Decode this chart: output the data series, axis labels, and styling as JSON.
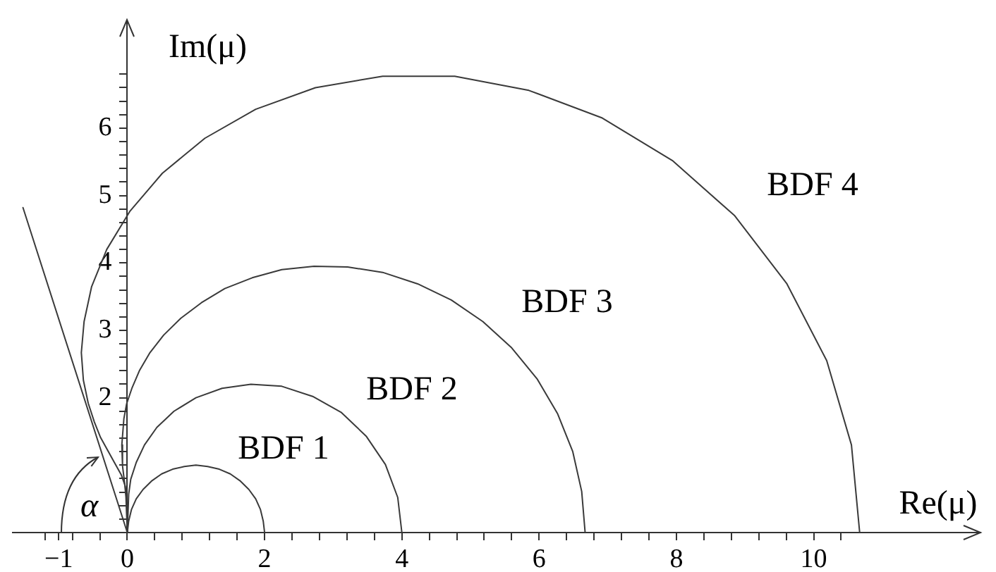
{
  "chart_data": {
    "type": "line",
    "xlabel": "Re(μ)",
    "ylabel": "Im(μ)",
    "annotations": [
      "α"
    ],
    "xlim": [
      -1.67,
      12.43
    ],
    "ylim": [
      0,
      7.6
    ],
    "xticks": [
      {
        "value": -1.2,
        "label": null
      },
      {
        "value": -1,
        "label": "−1"
      },
      {
        "value": -0.8,
        "label": null
      },
      {
        "value": -0.4,
        "label": null
      },
      0,
      {
        "value": 0.4,
        "label": null
      },
      {
        "value": 0.8,
        "label": null
      },
      {
        "value": 1.2,
        "label": null
      },
      {
        "value": 1.6,
        "label": null
      },
      2,
      {
        "value": 2.4,
        "label": null
      },
      {
        "value": 2.8,
        "label": null
      },
      {
        "value": 3.2,
        "label": null
      },
      {
        "value": 3.6,
        "label": null
      },
      4,
      {
        "value": 4.4,
        "label": null
      },
      {
        "value": 4.8,
        "label": null
      },
      {
        "value": 5.2,
        "label": null
      },
      {
        "value": 5.6,
        "label": null
      },
      6,
      {
        "value": 6.4,
        "label": null
      },
      {
        "value": 6.8,
        "label": null
      },
      {
        "value": 7.2,
        "label": null
      },
      {
        "value": 7.6,
        "label": null
      },
      8,
      {
        "value": 8.4,
        "label": null
      },
      {
        "value": 8.8,
        "label": null
      },
      {
        "value": 9.2,
        "label": null
      },
      {
        "value": 9.6,
        "label": null
      },
      10,
      {
        "value": 10.4,
        "label": null
      }
    ],
    "yticks": [
      {
        "value": 0.2,
        "label": null
      },
      {
        "value": 0.4,
        "label": null
      },
      {
        "value": 0.6,
        "label": null
      },
      {
        "value": 0.8,
        "label": null
      },
      {
        "value": 1,
        "label": null
      },
      {
        "value": 1.2,
        "label": null
      },
      {
        "value": 1.4,
        "label": null
      },
      {
        "value": 1.6,
        "label": null
      },
      {
        "value": 1.8,
        "label": null
      },
      2,
      {
        "value": 2.2,
        "label": null
      },
      {
        "value": 2.4,
        "label": null
      },
      {
        "value": 2.6,
        "label": null
      },
      {
        "value": 2.8,
        "label": null
      },
      3,
      {
        "value": 3.2,
        "label": null
      },
      {
        "value": 3.4,
        "label": null
      },
      {
        "value": 3.6,
        "label": null
      },
      {
        "value": 3.8,
        "label": null
      },
      4,
      {
        "value": 4.2,
        "label": null
      },
      {
        "value": 4.4,
        "label": null
      },
      {
        "value": 4.6,
        "label": null
      },
      {
        "value": 4.8,
        "label": null
      },
      5,
      {
        "value": 5.2,
        "label": null
      },
      {
        "value": 5.4,
        "label": null
      },
      {
        "value": 5.6,
        "label": null
      },
      {
        "value": 5.8,
        "label": null
      },
      6,
      {
        "value": 6.2,
        "label": null
      },
      {
        "value": 6.4,
        "label": null
      },
      {
        "value": 6.6,
        "label": null
      },
      {
        "value": 6.8,
        "label": null
      }
    ],
    "series": [
      {
        "name": "BDF 1",
        "color": "#3a3a3a",
        "x": [
          2,
          1.98,
          1.94,
          1.87,
          1.77,
          1.64,
          1.5,
          1.34,
          1.17,
          1,
          0.83,
          0.66,
          0.5,
          0.36,
          0.23,
          0.13,
          0.06,
          0.02,
          0
        ],
        "values": [
          0,
          0.17,
          0.34,
          0.5,
          0.64,
          0.77,
          0.87,
          0.94,
          0.98,
          1,
          0.98,
          0.94,
          0.87,
          0.77,
          0.64,
          0.5,
          0.34,
          0.17,
          0
        ]
      },
      {
        "name": "BDF 2",
        "color": "#3a3a3a",
        "x": [
          4,
          3.94,
          3.76,
          3.48,
          3.12,
          2.7,
          2.25,
          1.8,
          1.38,
          1,
          0.68,
          0.43,
          0.25,
          0.13,
          0.05,
          0.02,
          0
        ],
        "values": [
          0,
          0.52,
          1.01,
          1.43,
          1.78,
          2.02,
          2.17,
          2.2,
          2.14,
          2,
          1.8,
          1.56,
          1.3,
          1.04,
          0.79,
          0.57,
          0
        ]
      },
      {
        "name": "BDF 3",
        "color": "#3a3a3a",
        "x": [
          6.67,
          6.62,
          6.49,
          6.27,
          5.97,
          5.6,
          5.18,
          4.72,
          4.23,
          3.72,
          3.21,
          2.72,
          2.25,
          1.82,
          1.42,
          1.08,
          0.78,
          0.53,
          0.33,
          0.18,
          0.07,
          -0.01,
          -0.05,
          -0.08,
          -0.07,
          -0.04,
          -0.02,
          0
        ],
        "values": [
          0,
          0.61,
          1.2,
          1.76,
          2.28,
          2.74,
          3.13,
          3.45,
          3.69,
          3.86,
          3.94,
          3.95,
          3.9,
          3.78,
          3.62,
          3.41,
          3.18,
          2.93,
          2.67,
          2.41,
          2.15,
          1.91,
          1.69,
          1.3,
          0.99,
          0.74,
          0.53,
          0
        ]
      },
      {
        "name": "BDF 4",
        "color": "#3a3a3a",
        "x": [
          10.67,
          10.55,
          10.19,
          9.61,
          8.85,
          7.94,
          6.92,
          5.85,
          4.77,
          3.72,
          2.74,
          1.87,
          1.13,
          0.51,
          0.04,
          -0.3,
          -0.52,
          -0.63,
          -0.67,
          -0.64,
          -0.57,
          -0.48,
          -0.39,
          -0.21,
          -0.09,
          -0.03,
          -0.01,
          0
        ],
        "values": [
          0,
          1.3,
          2.55,
          3.69,
          4.7,
          5.52,
          6.15,
          6.56,
          6.77,
          6.77,
          6.6,
          6.28,
          5.85,
          5.33,
          4.77,
          4.2,
          3.65,
          3.13,
          2.67,
          2.26,
          1.92,
          1.64,
          1.41,
          1.08,
          0.86,
          0.69,
          0.52,
          0
        ]
      },
      {
        "color": "#3a3a3a",
        "x": [
          0,
          -1.52
        ],
        "values": [
          0,
          4.82
        ]
      }
    ]
  }
}
